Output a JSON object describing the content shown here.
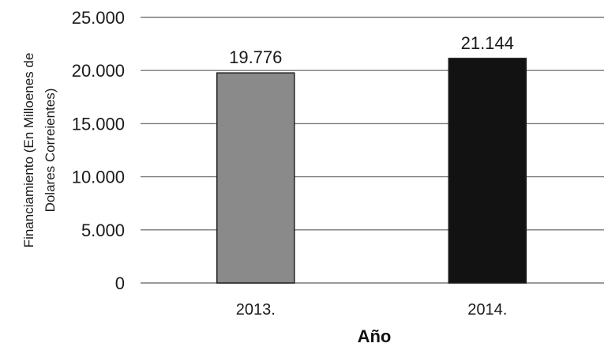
{
  "chart_data": {
    "type": "bar",
    "categories": [
      "2013.",
      "2014."
    ],
    "values": [
      19776,
      21144
    ],
    "value_labels": [
      "19.776",
      "21.144"
    ],
    "xlabel": "Año",
    "ylabel_lines": [
      "Financiamiento (En Milloenes de",
      "Dolares Correientes)"
    ],
    "ylim": [
      0,
      25000
    ],
    "yticks": [
      0,
      5000,
      10000,
      15000,
      20000,
      25000
    ],
    "ytick_labels": [
      "0",
      "5.000",
      "10.000",
      "15.000",
      "20.000",
      "25.000"
    ],
    "grid": true,
    "bar_colors": [
      "#8a8a8a",
      "#121212"
    ],
    "legend": "none"
  }
}
